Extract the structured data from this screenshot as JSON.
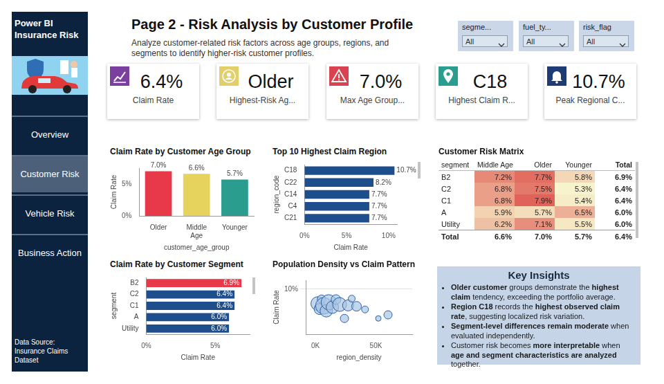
{
  "sidebar": {
    "title": "Power BI Insurance Risk",
    "nav": [
      "Overview",
      "Customer Risk",
      "Vehicle Risk",
      "Business Action"
    ],
    "active": "Customer Risk",
    "source": "Data Source: Insurance Claims Dataset"
  },
  "header": {
    "title": "Page 2 - Risk Analysis by Customer Profile",
    "subtitle": "Analyze customer-related risk factors across age groups, regions, and segments to identify higher-risk customer profiles."
  },
  "slicers": [
    {
      "label": "segme...",
      "value": "All"
    },
    {
      "label": "fuel_ty...",
      "value": "All"
    },
    {
      "label": "risk_flag",
      "value": "All"
    }
  ],
  "kpis": [
    {
      "value": "6.4%",
      "label": "Claim Rate"
    },
    {
      "value": "Older",
      "label": "Highest-Risk Ag..."
    },
    {
      "value": "7.0%",
      "label": "Max Age Group..."
    },
    {
      "value": "C18",
      "label": "Highest Claim R..."
    },
    {
      "value": "10.7%",
      "label": "Peak Regional C..."
    }
  ],
  "chart_data": [
    {
      "type": "bar",
      "title": "Claim Rate by Customer Age Group",
      "categories": [
        "Older",
        "Middle Age",
        "Younger"
      ],
      "values": [
        7.0,
        6.6,
        5.7
      ],
      "value_labels": [
        "7.0%",
        "6.6%",
        "5.7%"
      ],
      "colors": [
        "#e8394a",
        "#e6d35e",
        "#2a9d8f"
      ],
      "xlabel": "customer_age_group",
      "ylabel": "Claim Rate",
      "ylim": [
        0,
        7.5
      ],
      "yticks": [
        {
          "value": 0,
          "label": "0%"
        },
        {
          "value": 5,
          "label": "5%"
        }
      ],
      "grid": false,
      "data_labels": true
    },
    {
      "type": "bar",
      "orientation": "horizontal",
      "title": "Top 10 Highest Claim Region",
      "categories": [
        "C18",
        "C22",
        "C14",
        "C4",
        "C21"
      ],
      "values": [
        10.7,
        8.2,
        7.7,
        7.7,
        7.7
      ],
      "value_labels": [
        "10.7%",
        "8.2%",
        "7.7%",
        "7.7%",
        "7.7%"
      ],
      "color": "#1f4e8c",
      "xlabel": "Claim Rate",
      "ylabel": "region_code",
      "xlim": [
        0,
        11
      ],
      "xticks": [
        {
          "value": 0,
          "label": "0%"
        },
        {
          "value": 5,
          "label": "5%"
        },
        {
          "value": 10,
          "label": "10%"
        }
      ],
      "grid": false,
      "data_labels": true
    },
    {
      "type": "bar",
      "orientation": "horizontal",
      "title": "Claim Rate by Customer Segment",
      "categories": [
        "B2",
        "C2",
        "C1",
        "A",
        "Utility"
      ],
      "values": [
        6.9,
        6.4,
        6.4,
        6.0,
        6.0
      ],
      "value_labels": [
        "6.9%",
        "6.4%",
        "6.4%",
        "6.0%",
        "6.0%"
      ],
      "colors": [
        "#e8394a",
        "#1f4e8c",
        "#1f4e8c",
        "#1f4e8c",
        "#1f4e8c"
      ],
      "xlabel": "Claim Rate",
      "ylabel": "segment",
      "xlim": [
        0,
        7.5
      ],
      "xticks": [
        {
          "value": 0,
          "label": "0%"
        },
        {
          "value": 5,
          "label": "5%"
        }
      ],
      "grid": false,
      "data_labels": true
    },
    {
      "type": "bubble",
      "title": "Population Density vs Claim Pattern",
      "x": [
        2000,
        3500,
        5000,
        7000,
        9000,
        11000,
        14000,
        17000,
        20000,
        24000,
        27000,
        30000,
        34000,
        41000,
        52000,
        60000
      ],
      "values": [
        6.8,
        5.6,
        7.8,
        6.3,
        5.2,
        7.1,
        6.0,
        7.7,
        6.6,
        3.5,
        6.4,
        7.9,
        6.2,
        5.5,
        3.5,
        4.3
      ],
      "sizes": [
        10,
        8,
        6,
        12,
        9,
        11,
        9,
        7,
        10,
        6,
        8,
        5,
        7,
        5,
        4,
        6
      ],
      "color": "#a8c5e6",
      "xlabel": "region_density",
      "ylabel": "Claim Rate",
      "xlim": [
        -8000,
        80000
      ],
      "xticks": [
        {
          "value": 0,
          "label": "0K"
        },
        {
          "value": 50000,
          "label": "50K"
        }
      ],
      "ylim": [
        0,
        12
      ],
      "yticks": [
        {
          "value": 10,
          "label": "10%"
        }
      ],
      "grid": true
    }
  ],
  "matrix": {
    "title": "Customer Risk Matrix",
    "columns": [
      "segment",
      "Middle Age",
      "Older",
      "Younger",
      "Total"
    ],
    "rows": [
      {
        "segment": "B2",
        "cells": [
          {
            "value": 7.2,
            "label": "7.2%"
          },
          {
            "value": 7.7,
            "label": "7.7%"
          },
          {
            "value": 5.8,
            "label": "5.8%"
          },
          {
            "value": 6.9,
            "label": "6.9%"
          }
        ]
      },
      {
        "segment": "C2",
        "cells": [
          {
            "value": 6.8,
            "label": "6.8%"
          },
          {
            "value": 7.5,
            "label": "7.5%"
          },
          {
            "value": 5.3,
            "label": "5.3%"
          },
          {
            "value": 6.4,
            "label": "6.4%"
          }
        ]
      },
      {
        "segment": "C1",
        "cells": [
          {
            "value": 6.8,
            "label": "6.8%"
          },
          {
            "value": 7.9,
            "label": "7.9%"
          },
          {
            "value": 5.4,
            "label": "5.4%"
          },
          {
            "value": 6.4,
            "label": "6.4%"
          }
        ]
      },
      {
        "segment": "A",
        "cells": [
          {
            "value": 5.9,
            "label": "5.9%"
          },
          {
            "value": 5.7,
            "label": "5.7%"
          },
          {
            "value": 6.5,
            "label": "6.5%"
          },
          {
            "value": 6.0,
            "label": "6.0%"
          }
        ]
      },
      {
        "segment": "Utility",
        "cells": [
          {
            "value": 6.2,
            "label": "6.2%"
          },
          {
            "value": 7.1,
            "label": "7.1%"
          },
          {
            "value": 5.5,
            "label": "5.5%"
          },
          {
            "value": 6.0,
            "label": "6.0%"
          }
        ]
      }
    ],
    "total_row": {
      "segment": "Total",
      "cells": [
        {
          "value": 6.6,
          "label": "6.6%"
        },
        {
          "value": 7.0,
          "label": "7.0%"
        },
        {
          "value": 5.7,
          "label": "5.7%"
        },
        {
          "value": 6.4,
          "label": "6.4%"
        }
      ]
    }
  },
  "insights": {
    "title": "Key Insights",
    "items": [
      [
        {
          "text": "Older customer",
          "bold": true
        },
        {
          "text": " groups demonstrate the "
        },
        {
          "text": "highest claim",
          "bold": true
        },
        {
          "text": " tendency, exceeding the portfolio average."
        }
      ],
      [
        {
          "text": "Region C18",
          "bold": true
        },
        {
          "text": " records the "
        },
        {
          "text": "highest observed claim rate",
          "bold": true
        },
        {
          "text": ", suggesting localized risk variation."
        }
      ],
      [
        {
          "text": "Segment-level differences remain moderate",
          "bold": true
        },
        {
          "text": " when evaluated independently."
        }
      ],
      [
        {
          "text": "Customer risk becomes "
        },
        {
          "text": "more interpretable",
          "bold": true
        },
        {
          "text": " when "
        },
        {
          "text": "age and segment characteristics are analyzed",
          "bold": true
        },
        {
          "text": " together."
        }
      ]
    ]
  }
}
